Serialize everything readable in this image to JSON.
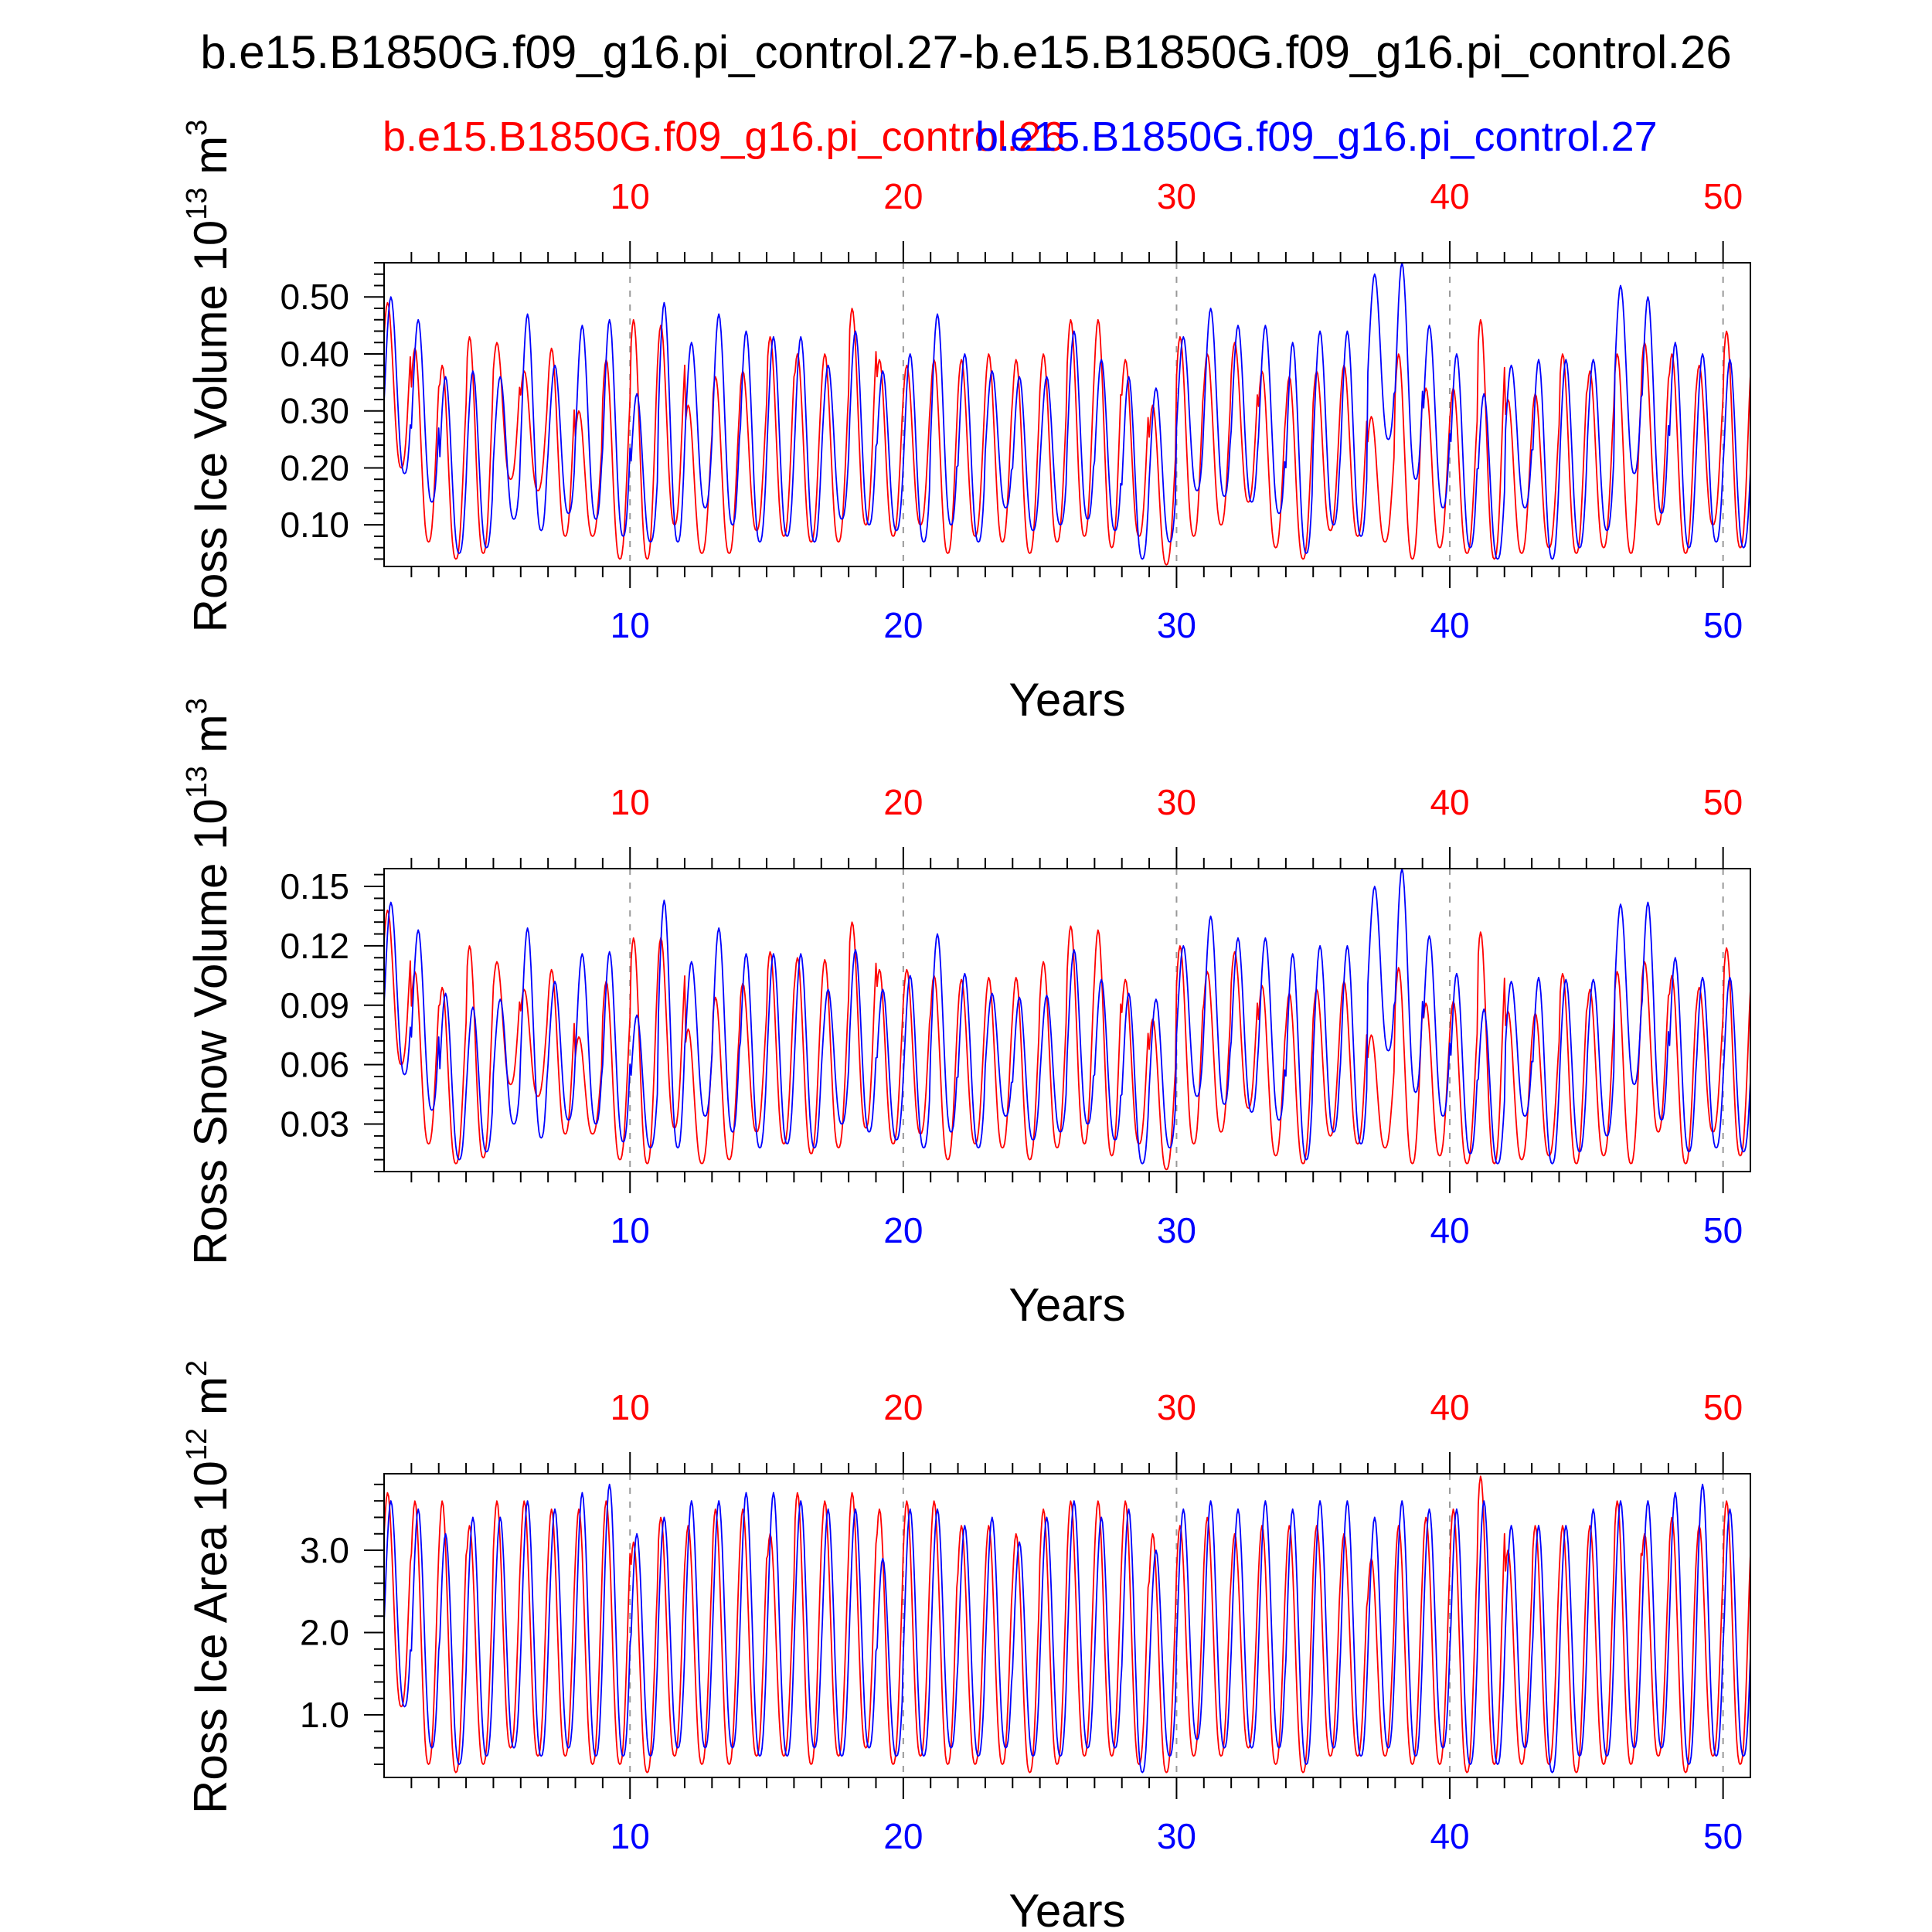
{
  "title": "b.e15.B1850G.f09_g16.pi_control.27-b.e15.B1850G.f09_g16.pi_control.26",
  "legend": {
    "red_label": "b.e15.B1850G.f09_g16.pi_control.26",
    "blue_label": "b.e15.B1850G.f09_g16.pi_control.27"
  },
  "colors": {
    "red": "#ff0000",
    "blue": "#0000ff",
    "axis": "#000000",
    "grid": "#999999"
  },
  "chart_data": [
    {
      "type": "line",
      "ylabel_main": "Ross Ice Volume 10",
      "ylabel_exp": "13",
      "ylabel_unit": " m",
      "ylabel_unit_exp": "3",
      "xlabel": "Years",
      "xlim": [
        1,
        51
      ],
      "ylim": [
        0.027,
        0.56
      ],
      "xticks": [
        10,
        20,
        30,
        40,
        50
      ],
      "xtick_labels": [
        "10",
        "20",
        "30",
        "40",
        "50"
      ],
      "yticks": [
        0.1,
        0.2,
        0.3,
        0.4,
        0.5
      ],
      "ytick_labels": [
        "0.10",
        "0.20",
        "0.30",
        "0.40",
        "0.50"
      ],
      "grid": "vertical-dashed",
      "series": [
        {
          "name": "b.e15.B1850G.f09_g16.pi_control.26",
          "color": "red",
          "annual_max": [
            0.49,
            0.41,
            0.38,
            0.43,
            0.42,
            0.37,
            0.41,
            0.3,
            0.39,
            0.46,
            0.45,
            0.31,
            0.36,
            0.37,
            0.43,
            0.4,
            0.4,
            0.48,
            0.39,
            0.38,
            0.39,
            0.39,
            0.4,
            0.39,
            0.4,
            0.46,
            0.46,
            0.39,
            0.31,
            0.43,
            0.4,
            0.42,
            0.37,
            0.36,
            0.37,
            0.38,
            0.29,
            0.4,
            0.34,
            0.34,
            0.46,
            0.32,
            0.33,
            0.4,
            0.37,
            0.4,
            0.42,
            0.4,
            0.38,
            0.44,
            0.47
          ],
          "annual_min": [
            0.2,
            0.07,
            0.04,
            0.05,
            0.18,
            0.16,
            0.08,
            0.08,
            0.04,
            0.04,
            0.1,
            0.05,
            0.05,
            0.09,
            0.08,
            0.07,
            0.07,
            0.1,
            0.08,
            0.1,
            0.05,
            0.08,
            0.07,
            0.05,
            0.07,
            0.08,
            0.06,
            0.08,
            0.03,
            0.08,
            0.1,
            0.14,
            0.06,
            0.04,
            0.09,
            0.08,
            0.07,
            0.04,
            0.06,
            0.05,
            0.04,
            0.05,
            0.06,
            0.05,
            0.06,
            0.05,
            0.1,
            0.05,
            0.1,
            0.06,
            0.14
          ]
        },
        {
          "name": "b.e15.B1850G.f09_g16.pi_control.27",
          "color": "blue",
          "annual_max": [
            0.5,
            0.46,
            0.36,
            0.37,
            0.36,
            0.47,
            0.38,
            0.45,
            0.46,
            0.33,
            0.49,
            0.42,
            0.47,
            0.44,
            0.43,
            0.43,
            0.38,
            0.44,
            0.37,
            0.4,
            0.47,
            0.4,
            0.37,
            0.36,
            0.36,
            0.44,
            0.39,
            0.36,
            0.34,
            0.43,
            0.48,
            0.45,
            0.45,
            0.42,
            0.44,
            0.44,
            0.54,
            0.56,
            0.45,
            0.4,
            0.33,
            0.38,
            0.39,
            0.39,
            0.39,
            0.52,
            0.5,
            0.42,
            0.4,
            0.39,
            0.39
          ],
          "annual_min": [
            0.19,
            0.14,
            0.05,
            0.06,
            0.11,
            0.09,
            0.12,
            0.11,
            0.08,
            0.07,
            0.07,
            0.13,
            0.1,
            0.07,
            0.08,
            0.07,
            0.11,
            0.1,
            0.09,
            0.07,
            0.1,
            0.07,
            0.13,
            0.09,
            0.1,
            0.11,
            0.09,
            0.04,
            0.07,
            0.16,
            0.15,
            0.14,
            0.12,
            0.05,
            0.1,
            0.08,
            0.25,
            0.18,
            0.13,
            0.06,
            0.04,
            0.13,
            0.04,
            0.06,
            0.09,
            0.19,
            0.12,
            0.06,
            0.07,
            0.06,
            0.06
          ]
        }
      ]
    },
    {
      "type": "line",
      "ylabel_main": "Ross Snow Volume 10",
      "ylabel_exp": "13",
      "ylabel_unit": " m",
      "ylabel_unit_exp": "3",
      "xlabel": "Years",
      "xlim": [
        1,
        51
      ],
      "ylim": [
        0.006,
        0.159
      ],
      "xticks": [
        10,
        20,
        30,
        40,
        50
      ],
      "xtick_labels": [
        "10",
        "20",
        "30",
        "40",
        "50"
      ],
      "yticks": [
        0.03,
        0.06,
        0.09,
        0.12,
        0.15
      ],
      "ytick_labels": [
        "0.03",
        "0.06",
        "0.09",
        "0.12",
        "0.15"
      ],
      "grid": "vertical-dashed",
      "series": [
        {
          "name": "b.e15.B1850G.f09_g16.pi_control.26",
          "color": "red",
          "annual_max": [
            0.138,
            0.107,
            0.099,
            0.12,
            0.112,
            0.098,
            0.108,
            0.074,
            0.102,
            0.124,
            0.124,
            0.078,
            0.094,
            0.101,
            0.117,
            0.114,
            0.113,
            0.132,
            0.108,
            0.108,
            0.105,
            0.103,
            0.104,
            0.104,
            0.112,
            0.13,
            0.128,
            0.103,
            0.083,
            0.12,
            0.107,
            0.117,
            0.1,
            0.096,
            0.098,
            0.102,
            0.075,
            0.109,
            0.091,
            0.092,
            0.127,
            0.087,
            0.086,
            0.106,
            0.098,
            0.107,
            0.112,
            0.105,
            0.099,
            0.119,
            0.121
          ],
          "annual_min": [
            0.06,
            0.02,
            0.01,
            0.013,
            0.05,
            0.044,
            0.025,
            0.025,
            0.012,
            0.01,
            0.028,
            0.01,
            0.012,
            0.026,
            0.02,
            0.015,
            0.018,
            0.028,
            0.02,
            0.025,
            0.012,
            0.02,
            0.018,
            0.012,
            0.018,
            0.02,
            0.014,
            0.02,
            0.007,
            0.02,
            0.026,
            0.038,
            0.014,
            0.01,
            0.024,
            0.02,
            0.018,
            0.01,
            0.014,
            0.01,
            0.01,
            0.012,
            0.014,
            0.01,
            0.014,
            0.01,
            0.026,
            0.01,
            0.026,
            0.014,
            0.035
          ]
        },
        {
          "name": "b.e15.B1850G.f09_g16.pi_control.27",
          "color": "blue",
          "annual_max": [
            0.142,
            0.128,
            0.096,
            0.089,
            0.093,
            0.129,
            0.102,
            0.116,
            0.117,
            0.085,
            0.143,
            0.112,
            0.129,
            0.116,
            0.116,
            0.116,
            0.098,
            0.118,
            0.098,
            0.105,
            0.126,
            0.106,
            0.096,
            0.094,
            0.095,
            0.118,
            0.103,
            0.096,
            0.093,
            0.12,
            0.135,
            0.124,
            0.124,
            0.116,
            0.12,
            0.12,
            0.15,
            0.159,
            0.125,
            0.106,
            0.088,
            0.102,
            0.104,
            0.103,
            0.103,
            0.141,
            0.142,
            0.114,
            0.104,
            0.104,
            0.107
          ],
          "annual_min": [
            0.055,
            0.037,
            0.012,
            0.016,
            0.03,
            0.023,
            0.032,
            0.03,
            0.021,
            0.018,
            0.018,
            0.034,
            0.026,
            0.018,
            0.02,
            0.018,
            0.03,
            0.026,
            0.022,
            0.018,
            0.026,
            0.018,
            0.034,
            0.022,
            0.026,
            0.03,
            0.022,
            0.01,
            0.018,
            0.044,
            0.04,
            0.036,
            0.032,
            0.012,
            0.026,
            0.02,
            0.067,
            0.046,
            0.034,
            0.015,
            0.01,
            0.034,
            0.01,
            0.016,
            0.024,
            0.05,
            0.032,
            0.016,
            0.018,
            0.016,
            0.014
          ]
        }
      ]
    },
    {
      "type": "line",
      "ylabel_main": "Ross Ice Area 10",
      "ylabel_exp": "12",
      "ylabel_unit": " m",
      "ylabel_unit_exp": "2",
      "xlabel": "Years",
      "xlim": [
        1,
        51
      ],
      "ylim": [
        0.24,
        3.93
      ],
      "xticks": [
        10,
        20,
        30,
        40,
        50
      ],
      "xtick_labels": [
        "10",
        "20",
        "30",
        "40",
        "50"
      ],
      "yticks": [
        1.0,
        2.0,
        3.0
      ],
      "ytick_labels": [
        "1.0",
        "2.0",
        "3.0"
      ],
      "grid": "vertical-dashed",
      "series": [
        {
          "name": "b.e15.B1850G.f09_g16.pi_control.26",
          "color": "red",
          "annual_max": [
            3.7,
            3.6,
            3.6,
            3.3,
            3.6,
            3.6,
            3.5,
            3.5,
            3.6,
            3.1,
            3.4,
            3.3,
            3.5,
            3.5,
            3.2,
            3.7,
            3.6,
            3.7,
            3.5,
            3.6,
            3.6,
            3.3,
            3.3,
            3.2,
            3.5,
            3.6,
            3.6,
            3.6,
            3.2,
            3.3,
            3.4,
            3.2,
            3.3,
            3.3,
            3.3,
            3.2,
            2.9,
            3.3,
            3.4,
            3.5,
            3.9,
            3.0,
            3.3,
            3.3,
            3.3,
            3.6,
            3.2,
            3.4,
            3.3,
            3.6,
            3.8
          ],
          "annual_min": [
            1.1,
            0.4,
            0.3,
            0.4,
            0.6,
            0.5,
            0.5,
            0.4,
            0.4,
            0.3,
            0.5,
            0.4,
            0.4,
            0.5,
            0.5,
            0.4,
            0.5,
            0.6,
            0.4,
            0.5,
            0.4,
            0.4,
            0.4,
            0.3,
            0.4,
            0.5,
            0.5,
            0.4,
            0.3,
            0.5,
            0.5,
            0.6,
            0.4,
            0.3,
            0.5,
            0.5,
            0.5,
            0.4,
            0.4,
            0.3,
            0.4,
            0.4,
            0.4,
            0.3,
            0.4,
            0.4,
            0.5,
            0.3,
            0.5,
            0.4,
            0.6
          ]
        },
        {
          "name": "b.e15.B1850G.f09_g16.pi_control.27",
          "color": "blue",
          "annual_max": [
            3.6,
            3.5,
            3.2,
            3.4,
            3.4,
            3.6,
            3.5,
            3.7,
            3.8,
            3.2,
            3.4,
            3.6,
            3.6,
            3.7,
            3.7,
            3.6,
            3.5,
            3.5,
            2.9,
            3.5,
            3.5,
            3.3,
            3.4,
            3.1,
            3.4,
            3.6,
            3.4,
            3.5,
            3.0,
            3.5,
            3.6,
            3.5,
            3.6,
            3.5,
            3.6,
            3.6,
            3.4,
            3.6,
            3.5,
            3.5,
            3.6,
            3.3,
            3.3,
            3.3,
            3.5,
            3.6,
            3.6,
            3.7,
            3.8,
            3.5,
            3.5
          ],
          "annual_min": [
            1.1,
            0.6,
            0.4,
            0.5,
            0.6,
            0.5,
            0.6,
            0.5,
            0.5,
            0.5,
            0.6,
            0.6,
            0.6,
            0.5,
            0.5,
            0.6,
            0.5,
            0.6,
            0.5,
            0.5,
            0.6,
            0.5,
            0.6,
            0.5,
            0.5,
            0.6,
            0.6,
            0.3,
            0.5,
            0.7,
            0.6,
            0.6,
            0.6,
            0.4,
            0.6,
            0.5,
            0.6,
            0.5,
            0.6,
            0.4,
            0.4,
            0.6,
            0.3,
            0.5,
            0.5,
            0.6,
            0.6,
            0.4,
            0.5,
            0.5,
            0.5
          ]
        }
      ]
    }
  ]
}
